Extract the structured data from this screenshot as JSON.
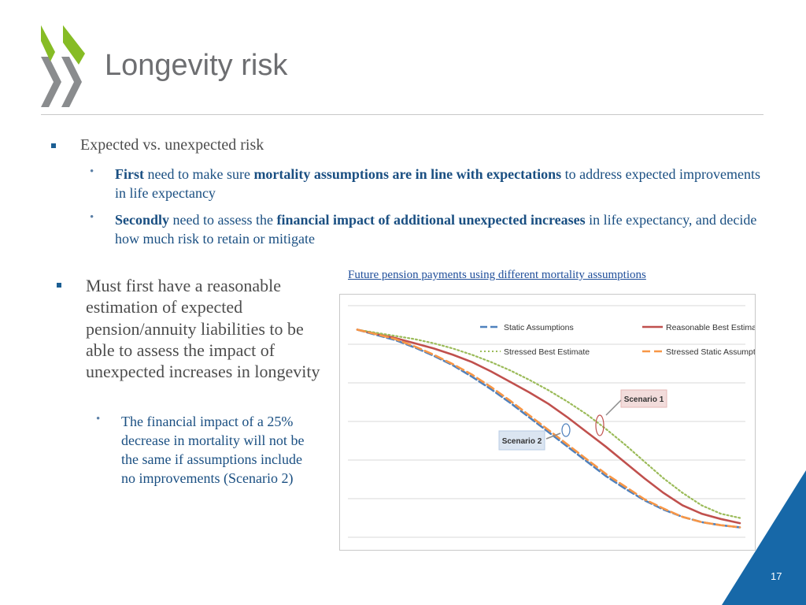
{
  "slide": {
    "title": "Longevity risk",
    "page_number": "17",
    "accent_color": "#1a4f82"
  },
  "bullets": [
    {
      "text": "Expected vs. unexpected risk",
      "sub": [
        {
          "bold1": "First",
          "text1": " need to make sure ",
          "bold2": "mortality assumptions are in line with expectations",
          "text2": " to address expected improvements in life expectancy"
        },
        {
          "bold1": "Secondly",
          "text1": " need to assess the ",
          "bold2": "financial impact of additional unexpected increases",
          "text2": " in life expectancy, and decide how much risk to retain or mitigate"
        }
      ]
    },
    {
      "text": "Must first have a reasonable estimation of expected pension/annuity liabilities to be able to assess the impact of unexpected increases in longevity",
      "sub": [
        {
          "text": "The financial impact of a 25% decrease in mortality will not be the same if assumptions include no improvements (Scenario 2)"
        }
      ]
    }
  ],
  "chart_data": {
    "type": "line",
    "title": "Future pension payments using different mortality assumptions",
    "grid": true,
    "legend_position": "top",
    "x": [
      0,
      1,
      2,
      3,
      4,
      5,
      6,
      7,
      8,
      9,
      10,
      11,
      12,
      13,
      14,
      15,
      16,
      17,
      18,
      19,
      20
    ],
    "ylim": [
      0,
      1.1
    ],
    "series": [
      {
        "name": "Static Assumptions",
        "color": "#4f81bd",
        "style": "dash",
        "values": [
          1.0,
          0.975,
          0.95,
          0.915,
          0.875,
          0.83,
          0.775,
          0.715,
          0.65,
          0.58,
          0.51,
          0.44,
          0.37,
          0.3,
          0.24,
          0.185,
          0.14,
          0.105,
          0.08,
          0.065,
          0.055
        ]
      },
      {
        "name": "Reasonable Best Estimate",
        "color": "#c0504d",
        "style": "solid",
        "values": [
          1.0,
          0.98,
          0.96,
          0.935,
          0.91,
          0.88,
          0.845,
          0.8,
          0.75,
          0.7,
          0.645,
          0.58,
          0.51,
          0.44,
          0.365,
          0.29,
          0.22,
          0.16,
          0.12,
          0.095,
          0.075
        ]
      },
      {
        "name": "Stressed Best Estimate",
        "color": "#9bbb59",
        "style": "dot",
        "values": [
          1.0,
          0.985,
          0.97,
          0.955,
          0.935,
          0.91,
          0.88,
          0.845,
          0.805,
          0.76,
          0.71,
          0.655,
          0.595,
          0.525,
          0.45,
          0.37,
          0.29,
          0.22,
          0.16,
          0.12,
          0.1
        ]
      },
      {
        "name": "Stressed Static Assumptions",
        "color": "#f79646",
        "style": "longdash",
        "values": [
          1.0,
          0.978,
          0.955,
          0.92,
          0.88,
          0.835,
          0.785,
          0.725,
          0.66,
          0.59,
          0.52,
          0.45,
          0.38,
          0.31,
          0.25,
          0.19,
          0.145,
          0.105,
          0.08,
          0.065,
          0.055
        ]
      }
    ],
    "annotations": [
      {
        "label": "Scenario 1",
        "fill": "#f2dcdb"
      },
      {
        "label": "Scenario 2",
        "fill": "#dbe5f1"
      }
    ]
  }
}
